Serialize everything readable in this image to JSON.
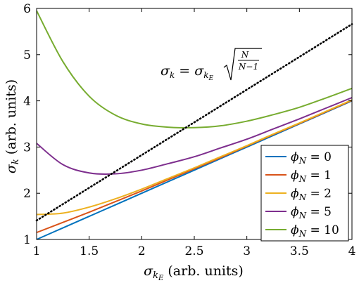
{
  "chart_data": {
    "type": "line",
    "xlabel": {
      "symbol": "σ",
      "sub": "k",
      "subsub": "E",
      "units": " (arb. units)"
    },
    "ylabel": {
      "symbol": "σ",
      "sub": "k",
      "units": " (arb. units)"
    },
    "xlim": [
      1,
      4
    ],
    "ylim": [
      1,
      6
    ],
    "xticks": [
      1,
      1.5,
      2,
      2.5,
      3,
      3.5,
      4
    ],
    "xtick_labels": [
      "1",
      "1.5",
      "2",
      "2.5",
      "3",
      "3.5",
      "4"
    ],
    "yticks": [
      1,
      2,
      3,
      4,
      5,
      6
    ],
    "ytick_labels": [
      "1",
      "2",
      "3",
      "4",
      "5",
      "6"
    ],
    "grid": false,
    "legend_position": "bottom-right",
    "annotation": {
      "lhs": "σ",
      "lhs_sub": "k",
      "eq": " = ",
      "rhs": "σ",
      "rhs_sub": "k",
      "rhs_subsub": "E",
      "numerator": "N",
      "denominator": "N−1"
    },
    "x": [
      1.0,
      1.25,
      1.5,
      1.75,
      2.0,
      2.25,
      2.5,
      2.75,
      3.0,
      3.25,
      3.5,
      3.75,
      4.0
    ],
    "series": [
      {
        "name": "ϕN = 0",
        "label_symbol": "ϕ",
        "label_sub": "N",
        "label_rest": " = 0",
        "color": "#0072bd",
        "values": [
          1.0,
          1.25,
          1.5,
          1.75,
          2.0,
          2.25,
          2.5,
          2.75,
          3.0,
          3.25,
          3.5,
          3.75,
          4.0
        ]
      },
      {
        "name": "ϕN = 1",
        "label_symbol": "ϕ",
        "label_sub": "N",
        "label_rest": " = 1",
        "color": "#d95319",
        "values": [
          1.15,
          1.37,
          1.59,
          1.82,
          2.05,
          2.29,
          2.53,
          2.77,
          3.02,
          3.27,
          3.51,
          3.76,
          4.01
        ]
      },
      {
        "name": "ϕN = 2",
        "label_symbol": "ϕ",
        "label_sub": "N",
        "label_rest": " = 2",
        "color": "#edb120",
        "values": [
          1.54,
          1.57,
          1.7,
          1.88,
          2.09,
          2.32,
          2.55,
          2.79,
          3.03,
          3.28,
          3.52,
          3.77,
          4.02
        ]
      },
      {
        "name": "ϕN = 5",
        "label_symbol": "ϕ",
        "label_sub": "N",
        "label_rest": " = 5",
        "color": "#7e2f8e",
        "values": [
          3.08,
          2.62,
          2.44,
          2.42,
          2.5,
          2.64,
          2.79,
          2.98,
          3.17,
          3.39,
          3.61,
          3.84,
          4.07
        ]
      },
      {
        "name": "ϕN = 10",
        "label_symbol": "ϕ",
        "label_sub": "N",
        "label_rest": " = 10",
        "color": "#77ac30",
        "values": [
          5.95,
          4.85,
          4.1,
          3.69,
          3.5,
          3.43,
          3.42,
          3.46,
          3.56,
          3.7,
          3.86,
          4.06,
          4.27
        ]
      }
    ],
    "reference_line": {
      "style": "dotted",
      "color": "#000000",
      "x": [
        1,
        4
      ],
      "y": [
        1.41,
        5.66
      ]
    }
  }
}
